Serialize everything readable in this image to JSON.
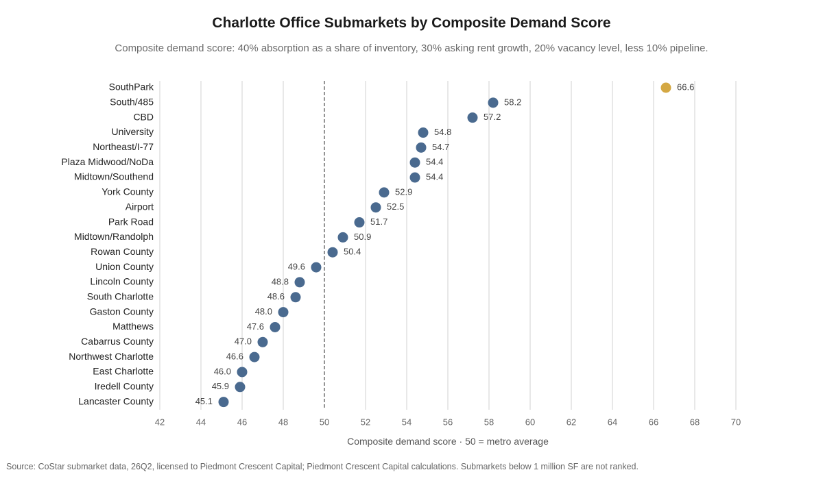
{
  "title": "Charlotte Office Submarkets by Composite Demand Score",
  "subtitle": "Composite demand score: 40% absorption as a share of inventory, 30% asking rent growth, 20% vacancy level, less 10% pipeline.",
  "xlabel": "Composite demand score   ·   50 = metro average",
  "source": "Source: CoStar submarket data, 26Q2, licensed to Piedmont Crescent Capital; Piedmont Crescent Capital calculations. Submarkets below 1 million SF are not ranked.",
  "colors": {
    "default_dot": "#4a6a8f",
    "highlight_dot": "#d4a843",
    "gridline": "#d0d0d0",
    "reference_line": "#888888"
  },
  "chart_data": {
    "type": "scatter",
    "orientation": "horizontal-dot-plot",
    "title": "Charlotte Office Submarkets by Composite Demand Score",
    "xlabel": "Composite demand score   ·   50 = metro average",
    "xlim": [
      42,
      70
    ],
    "xticks": [
      "42",
      "44",
      "46",
      "48",
      "50",
      "52",
      "54",
      "56",
      "58",
      "60",
      "62",
      "64",
      "66",
      "68",
      "70"
    ],
    "reference_value": 50,
    "grid": true,
    "highlight_category": "SouthPark",
    "categories": [
      "SouthPark",
      "South/485",
      "CBD",
      "University",
      "Northeast/I-77",
      "Plaza Midwood/NoDa",
      "Midtown/Southend",
      "York County",
      "Airport",
      "Park Road",
      "Midtown/Randolph",
      "Rowan County",
      "Union County",
      "Lincoln County",
      "South Charlotte",
      "Gaston County",
      "Matthews",
      "Cabarrus County",
      "Northwest Charlotte",
      "East Charlotte",
      "Iredell County",
      "Lancaster County"
    ],
    "values": [
      66.6,
      58.2,
      57.2,
      54.8,
      54.7,
      54.4,
      54.4,
      52.9,
      52.5,
      51.7,
      50.9,
      50.4,
      49.6,
      48.8,
      48.6,
      48.0,
      47.6,
      47.0,
      46.6,
      46.0,
      45.9,
      45.1
    ],
    "value_labels": [
      "66.6",
      "58.2",
      "57.2",
      "54.8",
      "54.7",
      "54.4",
      "54.4",
      "52.9",
      "52.5",
      "51.7",
      "50.9",
      "50.4",
      "49.6",
      "48.8",
      "48.6",
      "48.0",
      "47.6",
      "47.0",
      "46.6",
      "46.0",
      "45.9",
      "45.1"
    ]
  }
}
